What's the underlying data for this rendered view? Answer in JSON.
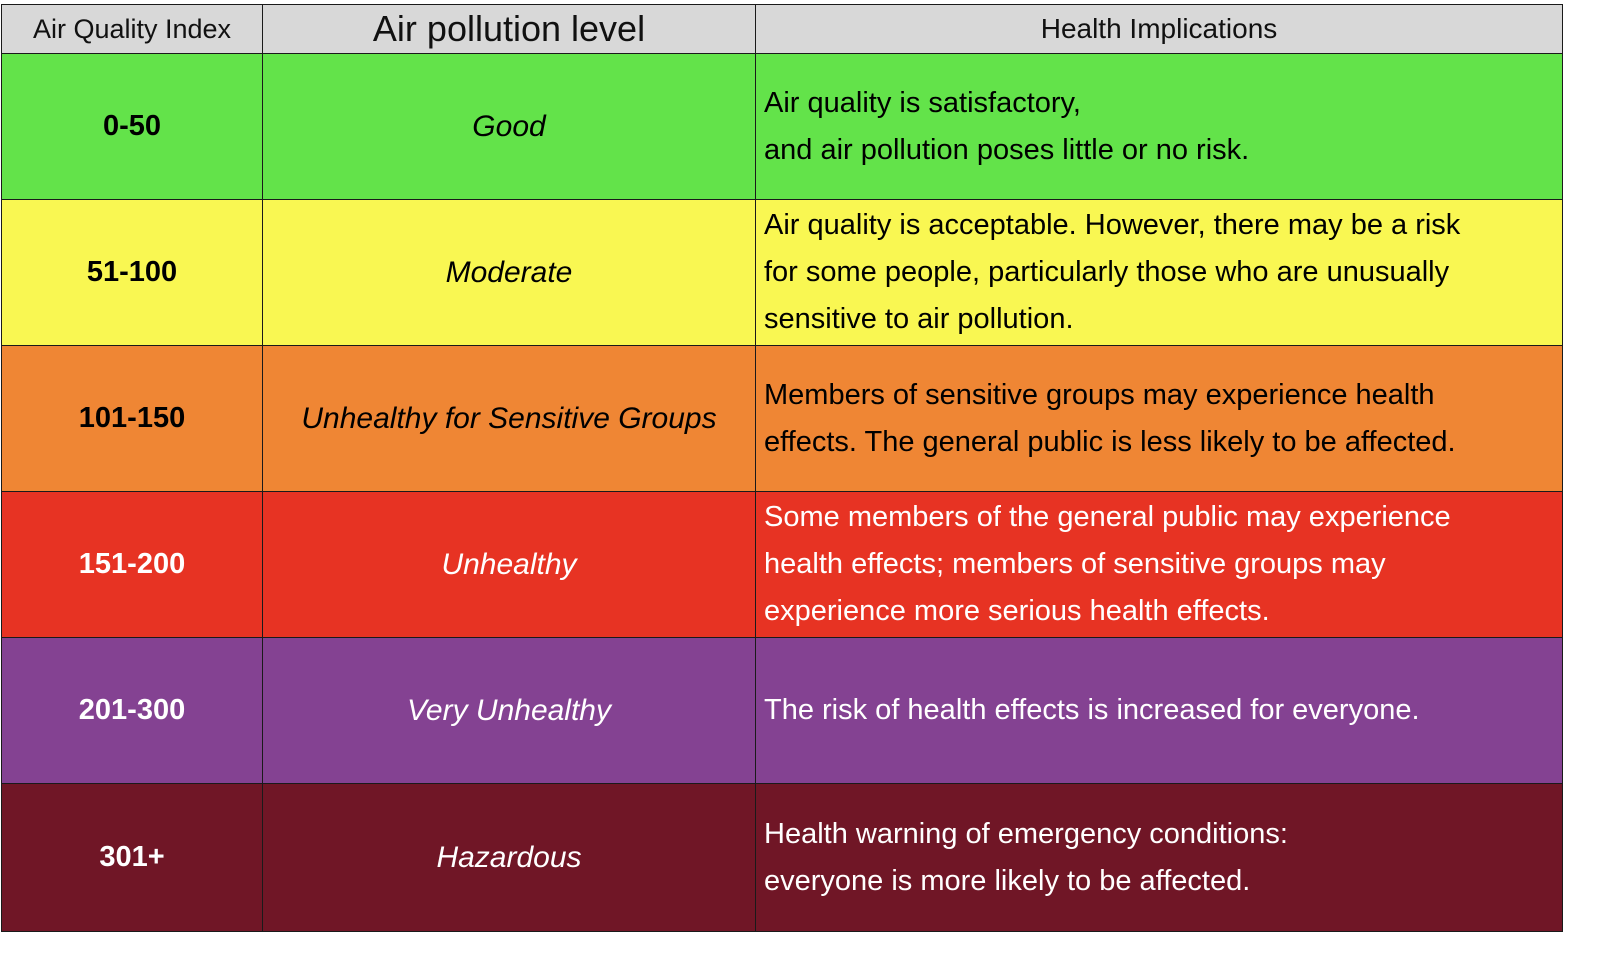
{
  "chart_data": {
    "type": "table",
    "columns": [
      "Air Quality Index",
      "Air pollution level",
      "Health Implications"
    ],
    "rows": [
      {
        "range": "0-50",
        "level": "Good",
        "health": [
          "Air quality is satisfactory,",
          "and air pollution poses little or no risk."
        ],
        "bg": "#63e34a",
        "fg": "#000000"
      },
      {
        "range": "51-100",
        "level": "Moderate",
        "health": [
          "Air quality is acceptable. However, there may be a risk",
          "for some people, particularly those who are unusually",
          "sensitive to air pollution."
        ],
        "bg": "#f9f752",
        "fg": "#000000"
      },
      {
        "range": "101-150",
        "level": "Unhealthy for Sensitive Groups",
        "health": [
          "Members of sensitive groups may experience health",
          "effects. The general public is less likely to be affected."
        ],
        "bg": "#ef8634",
        "fg": "#000000"
      },
      {
        "range": "151-200",
        "level": "Unhealthy",
        "health": [
          "Some members of the general public may experience",
          "health effects; members of sensitive groups may",
          "experience more serious health effects."
        ],
        "bg": "#e73323",
        "fg": "#ffffff"
      },
      {
        "range": "201-300",
        "level": "Very Unhealthy",
        "health": [
          "The risk of health effects is increased for everyone."
        ],
        "bg": "#844292",
        "fg": "#ffffff"
      },
      {
        "range": "301+",
        "level": "Hazardous",
        "health": [
          "Health warning of emergency conditions:",
          "everyone is more likely to be affected."
        ],
        "bg": "#701626",
        "fg": "#ffffff"
      }
    ]
  },
  "header_bg": "#d8d8d8"
}
